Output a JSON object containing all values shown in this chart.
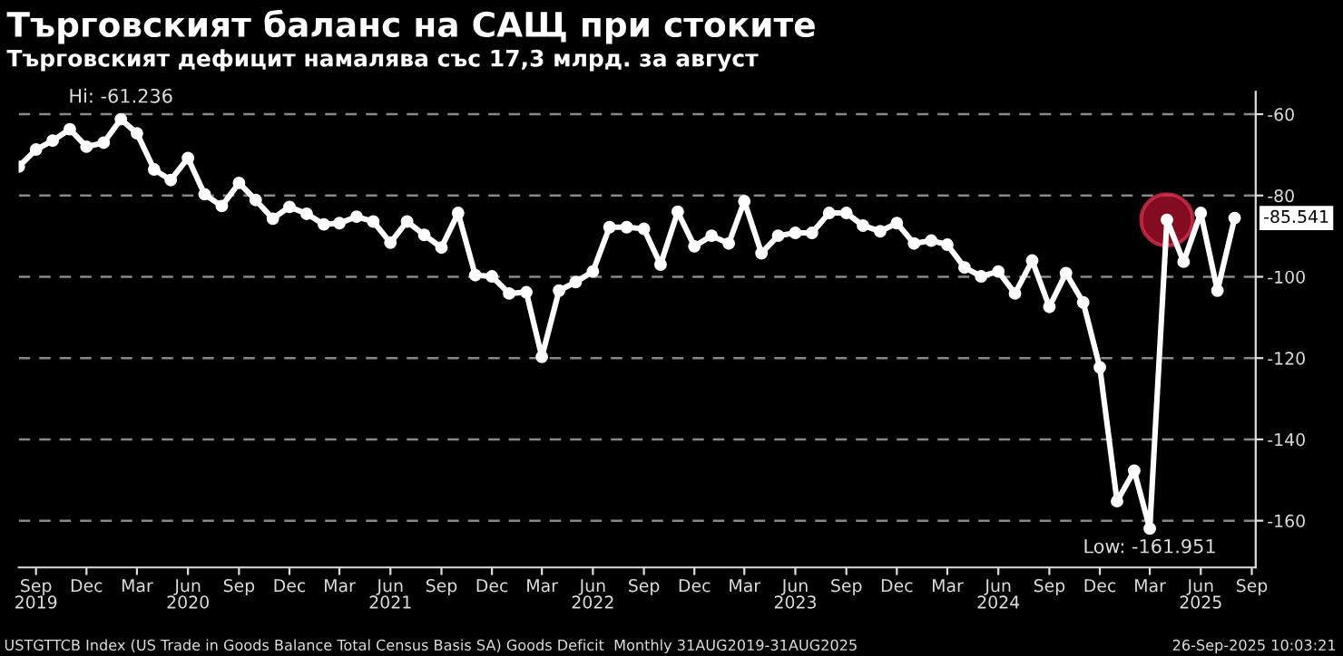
{
  "chart_data": {
    "type": "line",
    "title": "Търговският баланс на САЩ при стоките",
    "subtitle": "Търговският дефицит намалява със 17,3 млрд. за август",
    "x": [
      "2019-08",
      "2019-09",
      "2019-10",
      "2019-11",
      "2019-12",
      "2020-01",
      "2020-02",
      "2020-03",
      "2020-04",
      "2020-05",
      "2020-06",
      "2020-07",
      "2020-08",
      "2020-09",
      "2020-10",
      "2020-11",
      "2020-12",
      "2021-01",
      "2021-02",
      "2021-03",
      "2021-04",
      "2021-05",
      "2021-06",
      "2021-07",
      "2021-08",
      "2021-09",
      "2021-10",
      "2021-11",
      "2021-12",
      "2022-01",
      "2022-02",
      "2022-03",
      "2022-04",
      "2022-05",
      "2022-06",
      "2022-07",
      "2022-08",
      "2022-09",
      "2022-10",
      "2022-11",
      "2022-12",
      "2023-01",
      "2023-02",
      "2023-03",
      "2023-04",
      "2023-05",
      "2023-06",
      "2023-07",
      "2023-08",
      "2023-09",
      "2023-10",
      "2023-11",
      "2023-12",
      "2024-01",
      "2024-02",
      "2024-03",
      "2024-04",
      "2024-05",
      "2024-06",
      "2024-07",
      "2024-08",
      "2024-09",
      "2024-10",
      "2024-11",
      "2024-12",
      "2025-01",
      "2025-02",
      "2025-03",
      "2025-04",
      "2025-05",
      "2025-06",
      "2025-07",
      "2025-08"
    ],
    "series": [
      {
        "color": "#ffffff",
        "marker": "circle",
        "values": [
          -72.9,
          -68.7,
          -66.5,
          -63.7,
          -68,
          -67,
          -61.236,
          -64.7,
          -73.6,
          -76.2,
          -70.8,
          -79.7,
          -82.6,
          -76.9,
          -81.1,
          -85.7,
          -82.8,
          -84.5,
          -87.1,
          -86.8,
          -85.2,
          -86.4,
          -91.6,
          -86.4,
          -89.7,
          -92.8,
          -84.3,
          -99.6,
          -99.9,
          -104.1,
          -103.8,
          -119.7,
          -103.4,
          -101.3,
          -98.7,
          -87.8,
          -87.8,
          -88.2,
          -97.0,
          -84.0,
          -92.5,
          -89.9,
          -91.8,
          -81.4,
          -94.2,
          -89.9,
          -89.2,
          -89.2,
          -84.3,
          -84.3,
          -87.4,
          -88.8,
          -86.8,
          -91.8,
          -91.1,
          -92.1,
          -97.7,
          -99.9,
          -98.7,
          -104.1,
          -96.0,
          -107.4,
          -99.1,
          -106.3,
          -122.3,
          -155.2,
          -147.7,
          -161.951,
          -86.0,
          -96.3,
          -84.3,
          -103.4,
          -85.541
        ]
      },
      {
        "type": "scatter",
        "color": "#b0102e",
        "marker": "circle",
        "x": [
          "2025-04"
        ],
        "values": [
          -86.0
        ]
      }
    ],
    "xlim": [
      "2019-08-01",
      "2025-09-08"
    ],
    "xticks": [
      {
        "value": "2019-09",
        "label": "Sep\n2019"
      },
      {
        "value": "2019-12",
        "label": "Dec"
      },
      {
        "value": "2020-03",
        "label": "Mar"
      },
      {
        "value": "2020-06",
        "label": "Jun\n2020"
      },
      {
        "value": "2020-09",
        "label": "Sep"
      },
      {
        "value": "2020-12",
        "label": "Dec"
      },
      {
        "value": "2021-03",
        "label": "Mar"
      },
      {
        "value": "2021-06",
        "label": "Jun\n2021"
      },
      {
        "value": "2021-09",
        "label": "Sep"
      },
      {
        "value": "2021-12",
        "label": "Dec"
      },
      {
        "value": "2022-03",
        "label": "Mar"
      },
      {
        "value": "2022-06",
        "label": "Jun\n2022"
      },
      {
        "value": "2022-09",
        "label": "Sep"
      },
      {
        "value": "2022-12",
        "label": "Dec"
      },
      {
        "value": "2023-03",
        "label": "Mar"
      },
      {
        "value": "2023-06",
        "label": "Jun\n2023"
      },
      {
        "value": "2023-09",
        "label": "Sep"
      },
      {
        "value": "2023-12",
        "label": "Dec"
      },
      {
        "value": "2024-03",
        "label": "Mar"
      },
      {
        "value": "2024-06",
        "label": "Jun\n2024"
      },
      {
        "value": "2024-09",
        "label": "Sep"
      },
      {
        "value": "2024-12",
        "label": "Dec"
      },
      {
        "value": "2025-03",
        "label": "Mar"
      },
      {
        "value": "2025-06",
        "label": "Jun\n2025"
      },
      {
        "value": "2025-09",
        "label": "Sep"
      }
    ],
    "ylim": [
      -171.5,
      -54.5
    ],
    "yticks": [
      -160,
      -140,
      -120,
      -100,
      -80,
      -60
    ],
    "grid": "y",
    "line_style": "solid",
    "legend": false,
    "annotations": [
      {
        "text": "Hi: -61.236",
        "x": "2020-02",
        "y": -61.236
      },
      {
        "text": "Low: -161.951",
        "x": "2025-03",
        "y": -161.951
      },
      {
        "text": "-85.541",
        "x": "2025-08",
        "y": -85.541
      },
      "USTGTTCB Index (US Trade in Goods Balance Total Census Basis SA) Goods Deficit  Monthly 31AUG2019-31AUG2025",
      "26-Sep-2025 10:03:21"
    ]
  }
}
